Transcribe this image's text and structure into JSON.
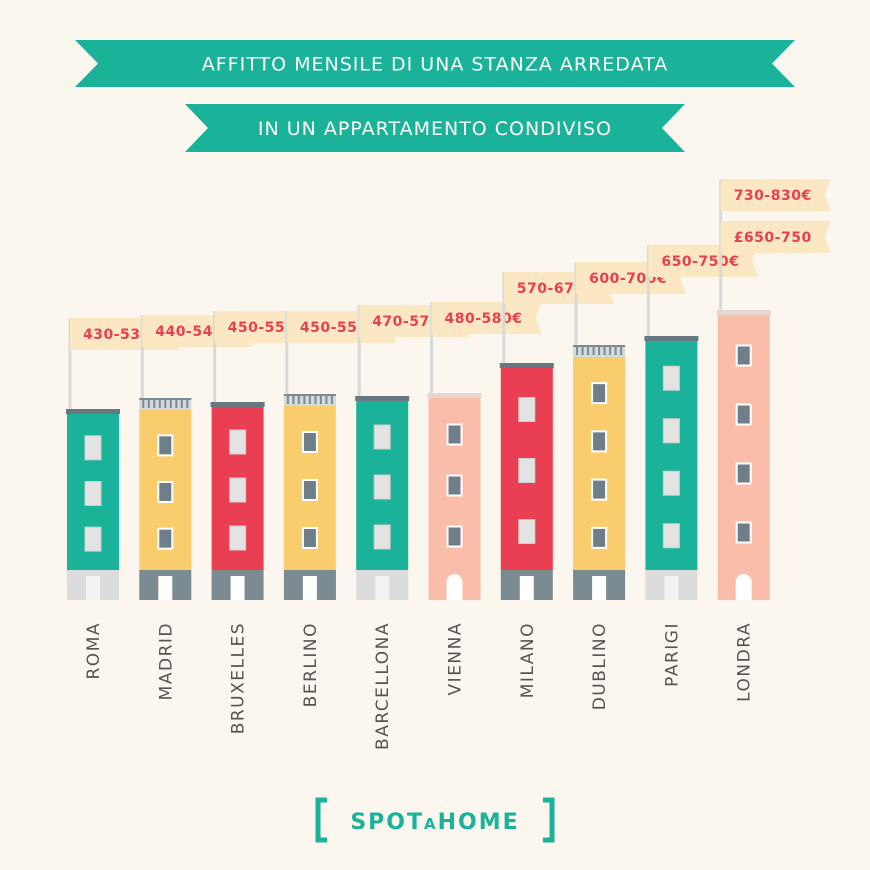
{
  "header": {
    "line1": "AFFITTO MENSILE DI UNA STANZA ARREDATA",
    "line2": "IN UN APPARTAMENTO CONDIVISO"
  },
  "logo": {
    "text_left": "SPOT",
    "text_mid": "A",
    "text_right": "HOME"
  },
  "colors": {
    "background": "#fbf7ee",
    "ribbon": "#1ab39a",
    "teal": "#1ab39a",
    "yellow": "#f9cc6e",
    "red": "#ea3e52",
    "pink": "#f9bda9",
    "flag": "#fbe8c2",
    "flag_text": "#ea3e52",
    "window": "#6e7f8a",
    "ground_grey": "#7c8a92"
  },
  "chart_data": {
    "type": "bar",
    "categories": [
      "ROMA",
      "MADRID",
      "BRUXELLES",
      "BERLINO",
      "BARCELLONA",
      "VIENNA",
      "MILANO",
      "DUBLINO",
      "PARIGI",
      "LONDRA"
    ],
    "series": [
      {
        "values": [
          {
            "low": 430,
            "high": 530
          },
          {
            "low": 440,
            "high": 540
          },
          {
            "low": 450,
            "high": 550
          },
          {
            "low": 450,
            "high": 550
          },
          {
            "low": 470,
            "high": 570
          },
          {
            "low": 480,
            "high": 580
          },
          {
            "low": 570,
            "high": 670
          },
          {
            "low": 600,
            "high": 700
          },
          {
            "low": 650,
            "high": 750
          },
          {
            "low": 730,
            "high": 830
          }
        ]
      }
    ],
    "flag_labels": [
      [
        "430-530€"
      ],
      [
        "440-540€"
      ],
      [
        "450-550€"
      ],
      [
        "450-550€"
      ],
      [
        "470-570€"
      ],
      [
        "480-580€"
      ],
      [
        "570-670€"
      ],
      [
        "600-700€"
      ],
      [
        "650-750€"
      ],
      [
        "730-830€",
        "£650-750"
      ]
    ],
    "building_colors": [
      "teal",
      "yellow",
      "red",
      "yellow",
      "teal",
      "pink",
      "red",
      "yellow",
      "teal",
      "pink"
    ],
    "building_windows": [
      "light",
      "dark",
      "light",
      "dark",
      "light",
      "dark",
      "light",
      "dark",
      "light",
      "dark"
    ],
    "building_tops": [
      "flat",
      "rail",
      "flat",
      "rail",
      "flat",
      "flat",
      "flat",
      "rail",
      "flat",
      "flat"
    ],
    "building_grounds": [
      "light",
      "grey",
      "grey",
      "grey",
      "light",
      "pink",
      "grey",
      "grey",
      "light",
      "pink"
    ],
    "xlabel": "",
    "ylabel": "",
    "grid": false,
    "legend": "none"
  }
}
